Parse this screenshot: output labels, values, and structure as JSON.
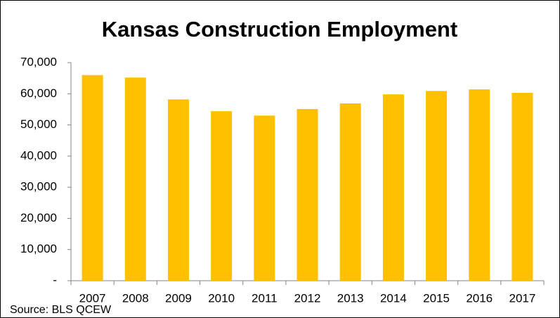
{
  "chart_data": {
    "type": "bar",
    "title": "Kansas Construction Employment",
    "categories": [
      "2007",
      "2008",
      "2009",
      "2010",
      "2011",
      "2012",
      "2013",
      "2014",
      "2015",
      "2016",
      "2017"
    ],
    "values": [
      66000,
      65200,
      58200,
      54400,
      53000,
      55100,
      56900,
      59800,
      60900,
      61400,
      60300
    ],
    "color": "#ffc000",
    "ylim": [
      0,
      70000
    ],
    "yticks": [
      {
        "value": 0,
        "label": "-"
      },
      {
        "value": 10000,
        "label": "10,000"
      },
      {
        "value": 20000,
        "label": "20,000"
      },
      {
        "value": 30000,
        "label": "30,000"
      },
      {
        "value": 40000,
        "label": "40,000"
      },
      {
        "value": 50000,
        "label": "50,000"
      },
      {
        "value": 60000,
        "label": "60,000"
      },
      {
        "value": 70000,
        "label": "70,000"
      }
    ],
    "grid": false,
    "source": "Source: BLS QCEW"
  }
}
